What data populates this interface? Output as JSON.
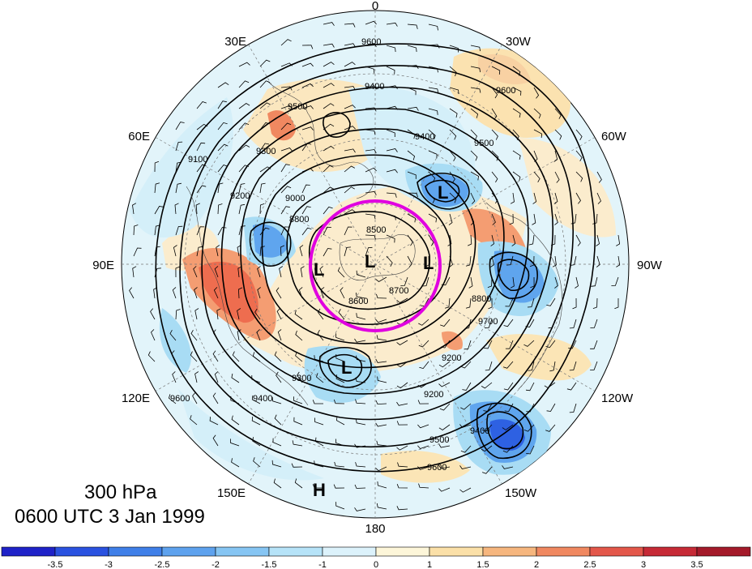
{
  "title": {
    "level": "300 hPa",
    "time": "0600 UTC 3 Jan 1999"
  },
  "longitude_labels": [
    {
      "id": "lon-0",
      "text": "0",
      "deg": 0
    },
    {
      "id": "lon-30w",
      "text": "30W",
      "deg": 30
    },
    {
      "id": "lon-60w",
      "text": "60W",
      "deg": 60
    },
    {
      "id": "lon-90w",
      "text": "90W",
      "deg": 90
    },
    {
      "id": "lon-120w",
      "text": "120W",
      "deg": 120
    },
    {
      "id": "lon-150w",
      "text": "150W",
      "deg": 150
    },
    {
      "id": "lon-180",
      "text": "180",
      "deg": 180
    },
    {
      "id": "lon-150e",
      "text": "150E",
      "deg": 210
    },
    {
      "id": "lon-120e",
      "text": "120E",
      "deg": 240
    },
    {
      "id": "lon-90e",
      "text": "90E",
      "deg": 270
    },
    {
      "id": "lon-60e",
      "text": "60E",
      "deg": 300
    },
    {
      "id": "lon-30e",
      "text": "30E",
      "deg": 330
    }
  ],
  "centers": [
    {
      "id": "low-center-1",
      "text": "L"
    },
    {
      "id": "low-center-2",
      "text": "L"
    },
    {
      "id": "low-center-3",
      "text": "L"
    },
    {
      "id": "low-center-4",
      "text": "L"
    },
    {
      "id": "low-center-5",
      "text": "L"
    },
    {
      "id": "high-center-1",
      "text": "H"
    }
  ],
  "contour_labels": [
    "9600",
    "9400",
    "9500",
    "9300",
    "9200",
    "9000",
    "8800",
    "8700",
    "8600",
    "8500",
    "9100",
    "9700"
  ],
  "colorbar": {
    "labels": [
      "-3.5",
      "-3",
      "-2.5",
      "-2",
      "-1.5",
      "-1",
      "0",
      "1",
      "1.5",
      "2",
      "2.5",
      "3",
      "3.5"
    ],
    "colors": [
      "#1f22c8",
      "#2a52e0",
      "#3f7fe8",
      "#5ea2ee",
      "#86c5f3",
      "#b6e3f8",
      "#dcf2fb",
      "#fdf6d9",
      "#fbe0a8",
      "#f6b67e",
      "#f08860",
      "#e3574a",
      "#c62a36",
      "#a41a2a"
    ]
  },
  "anomaly_colors": {
    "red_strong": "#ee6d4f",
    "red_mid": "#f49d72",
    "orange_light": "#f8d1a3",
    "tan_pale": "#fbeccd",
    "blue_pale": "#d4eff9",
    "blue_light": "#a8dcf4",
    "blue_mid": "#5fa5ee",
    "blue_deep": "#2e61e2"
  },
  "highlight_circle_color": "#e000e0"
}
